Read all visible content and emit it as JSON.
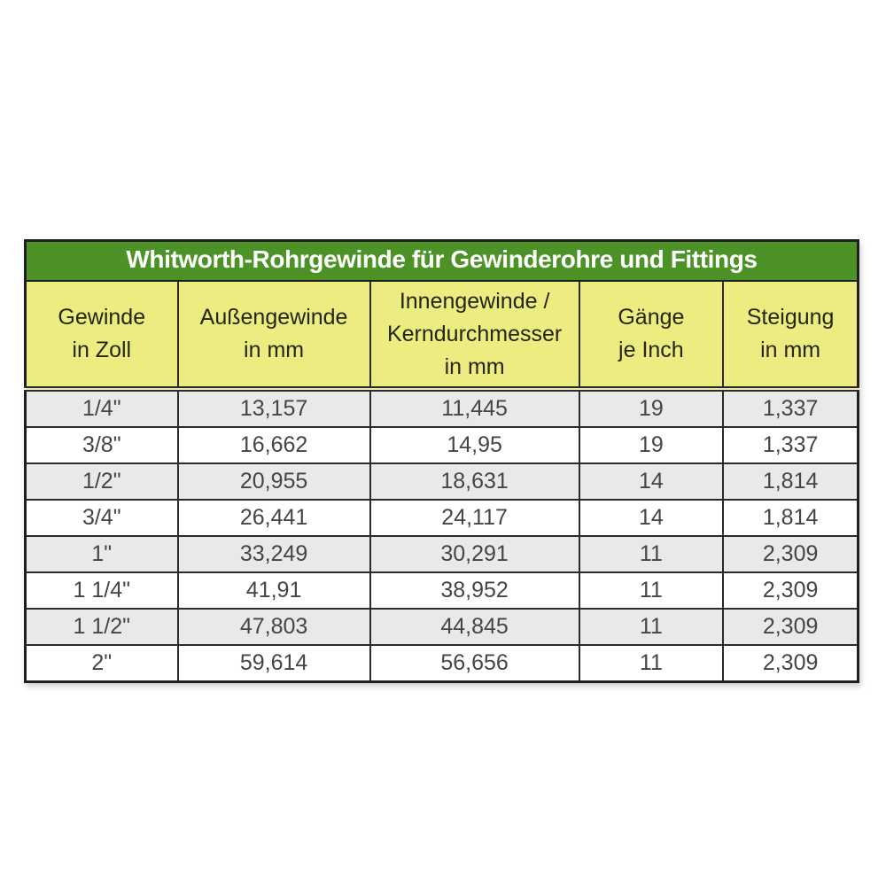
{
  "title": "Whitworth-Rohrgewinde für Gewinderohre und Fittings",
  "chart_data": {
    "type": "table",
    "title": "Whitworth-Rohrgewinde für Gewinderohre und Fittings",
    "columns": [
      {
        "name": "gewinde-in-zoll",
        "lines": [
          "Gewinde",
          "in Zoll"
        ]
      },
      {
        "name": "aussengewinde-in-mm",
        "lines": [
          "Außengewinde",
          "in mm"
        ]
      },
      {
        "name": "innengewinde-kerndurchmesser-in-mm",
        "lines": [
          "Innengewinde /",
          "Kerndurchmesser",
          "in mm"
        ]
      },
      {
        "name": "gaenge-je-inch",
        "lines": [
          "Gänge",
          "je Inch"
        ]
      },
      {
        "name": "steigung-in-mm",
        "lines": [
          "Steigung",
          "in mm"
        ]
      }
    ],
    "rows": [
      [
        "1/4\"",
        "13,157",
        "11,445",
        "19",
        "1,337"
      ],
      [
        "3/8\"",
        "16,662",
        "14,95",
        "19",
        "1,337"
      ],
      [
        "1/2\"",
        "20,955",
        "18,631",
        "14",
        "1,814"
      ],
      [
        "3/4\"",
        "26,441",
        "24,117",
        "14",
        "1,814"
      ],
      [
        "1\"",
        "33,249",
        "30,291",
        "11",
        "2,309"
      ],
      [
        "1 1/4\"",
        "41,91",
        "38,952",
        "11",
        "2,309"
      ],
      [
        "1 1/2\"",
        "47,803",
        "44,845",
        "11",
        "2,309"
      ],
      [
        "2\"",
        "59,614",
        "56,656",
        "11",
        "2,309"
      ]
    ]
  },
  "colors": {
    "title_bg": "#4d9227",
    "title_text": "#ffffff",
    "header_bg": "#ecec80",
    "header_text": "#26260f",
    "row_stripe": "#e9e9e9",
    "row_plain": "#ffffff",
    "border": "#2b2b2b",
    "cell_text": "#454545"
  }
}
